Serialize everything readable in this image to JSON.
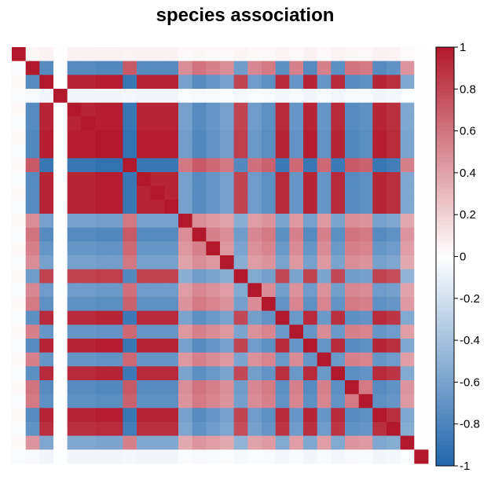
{
  "chart_data": {
    "type": "heatmap",
    "title": "species association",
    "n": 30,
    "positive_group": [
      2,
      4,
      5,
      6,
      7,
      9,
      10,
      11,
      16,
      19,
      21,
      23,
      26,
      27
    ],
    "negative_group": [
      1,
      8,
      12,
      13,
      14,
      15,
      17,
      18,
      20,
      22,
      24,
      25,
      28
    ],
    "neutral_group": [
      0,
      3,
      29
    ],
    "strength": [
      0.45,
      0.6,
      0.95,
      0.05,
      0.95,
      0.95,
      1.0,
      1.0,
      0.85,
      0.95,
      0.95,
      0.95,
      0.4,
      0.6,
      0.5,
      0.4,
      0.7,
      0.45,
      0.55,
      0.9,
      0.5,
      0.95,
      0.5,
      0.9,
      0.6,
      0.55,
      0.95,
      0.85,
      0.35,
      0.1
    ],
    "colorbar": {
      "range": [
        -1,
        1
      ],
      "ticks": [
        "1",
        "0.8",
        "0.6",
        "0.4",
        "0.2",
        "0",
        "-0.2",
        "-0.4",
        "-0.6",
        "-0.8",
        "-1"
      ],
      "low_color": "#2166ac",
      "mid_color": "#ffffff",
      "high_color": "#b2182b"
    },
    "grid": false,
    "legend": "right"
  }
}
